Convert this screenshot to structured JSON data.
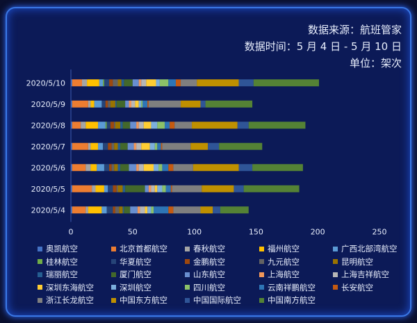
{
  "header": {
    "source": "数据来源：航班管家",
    "time_range": "数据时间：5 月 4 日 - 5 月 10 日",
    "unit": "单位：架次"
  },
  "chart_data": {
    "type": "bar",
    "orientation": "horizontal",
    "stacked": true,
    "categories": [
      "2020/5/10",
      "2020/5/9",
      "2020/5/8",
      "2020/5/7",
      "2020/5/6",
      "2020/5/5",
      "2020/5/4"
    ],
    "xlim": [
      0,
      250
    ],
    "xticks": [
      0,
      50,
      100,
      150,
      200,
      250
    ],
    "grid": false,
    "legend_position": "bottom",
    "series": [
      {
        "name": "奥凯航空",
        "color": "#4472c4",
        "values": [
          1,
          1,
          1,
          1,
          1,
          1,
          1
        ]
      },
      {
        "name": "北京首都航空",
        "color": "#ed7d31",
        "values": [
          8,
          13,
          7,
          13,
          11,
          16,
          11
        ]
      },
      {
        "name": "春秋航空",
        "color": "#a5a5a5",
        "values": [
          4,
          2,
          4,
          2,
          4,
          3,
          2
        ]
      },
      {
        "name": "福州航空",
        "color": "#ffc000",
        "values": [
          10,
          3,
          10,
          6,
          5,
          7,
          11
        ]
      },
      {
        "name": "广西北部湾航空",
        "color": "#5b9bd5",
        "values": [
          3,
          6,
          6,
          4,
          6,
          3,
          4
        ]
      },
      {
        "name": "桂林航空",
        "color": "#70ad47",
        "values": [
          1,
          0,
          1,
          0,
          0,
          0,
          0
        ]
      },
      {
        "name": "华夏航空",
        "color": "#264478",
        "values": [
          4,
          3,
          3,
          4,
          4,
          4,
          5
        ]
      },
      {
        "name": "金鹏航空",
        "color": "#9e480e",
        "values": [
          3,
          2,
          3,
          3,
          2,
          3,
          2
        ]
      },
      {
        "name": "九元航空",
        "color": "#636363",
        "values": [
          4,
          2,
          1,
          2,
          2,
          1,
          3
        ]
      },
      {
        "name": "昆明航空",
        "color": "#997300",
        "values": [
          3,
          4,
          4,
          3,
          3,
          4,
          3
        ]
      },
      {
        "name": "瑞丽航空",
        "color": "#255e91",
        "values": [
          2,
          1,
          2,
          2,
          2,
          2,
          1
        ]
      },
      {
        "name": "厦门航空",
        "color": "#43682b",
        "values": [
          7,
          7,
          6,
          6,
          7,
          16,
          5
        ]
      },
      {
        "name": "山东航空",
        "color": "#698ed0",
        "values": [
          5,
          3,
          5,
          5,
          6,
          3,
          6
        ]
      },
      {
        "name": "上海航空",
        "color": "#f1975a",
        "values": [
          2,
          2,
          2,
          2,
          2,
          2,
          2
        ]
      },
      {
        "name": "上海吉祥航空",
        "color": "#b7b7b7",
        "values": [
          4,
          3,
          4,
          4,
          4,
          3,
          4
        ]
      },
      {
        "name": "深圳东海航空",
        "color": "#ffcd33",
        "values": [
          8,
          3,
          6,
          7,
          8,
          2,
          2
        ]
      },
      {
        "name": "深圳航空",
        "color": "#7cafdd",
        "values": [
          3,
          2,
          5,
          4,
          4,
          4,
          3
        ]
      },
      {
        "name": "四川航空",
        "color": "#8cc168",
        "values": [
          7,
          1,
          6,
          2,
          3,
          3,
          2
        ]
      },
      {
        "name": "云南祥鹏航空",
        "color": "#2e75b6",
        "values": [
          6,
          4,
          4,
          3,
          5,
          4,
          12
        ]
      },
      {
        "name": "长安航空",
        "color": "#c55a11",
        "values": [
          4,
          1,
          4,
          1,
          4,
          1,
          4
        ]
      },
      {
        "name": "浙江长龙航空",
        "color": "#7f7f7f",
        "values": [
          13,
          26,
          14,
          23,
          16,
          24,
          22
        ]
      },
      {
        "name": "中国东方航空",
        "color": "#bf9000",
        "values": [
          34,
          16,
          37,
          14,
          37,
          26,
          10
        ]
      },
      {
        "name": "中国国际航空",
        "color": "#2f5597",
        "values": [
          12,
          4,
          9,
          9,
          11,
          8,
          6
        ]
      },
      {
        "name": "中国南方航空",
        "color": "#548235",
        "values": [
          53,
          38,
          46,
          35,
          41,
          45,
          23
        ]
      }
    ]
  }
}
